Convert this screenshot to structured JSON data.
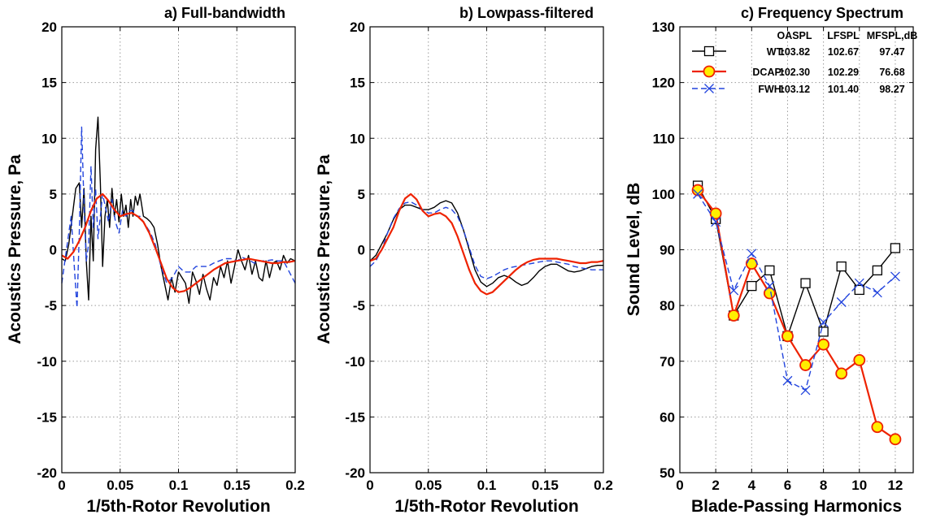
{
  "chart_data": [
    {
      "type": "line",
      "title": "a) Full-bandwidth",
      "xlabel": "1/5th-Rotor Revolution",
      "ylabel": "Acoustics Pressure, Pa",
      "xlim": [
        0,
        0.2
      ],
      "ylim": [
        -20,
        20
      ],
      "xticks": [
        0,
        0.05,
        0.1,
        0.15,
        0.2
      ],
      "xtick_labels": [
        "0",
        "0.05",
        "0.1",
        "0.15",
        "0.2"
      ],
      "yticks": [
        -20,
        -15,
        -10,
        -5,
        0,
        5,
        10,
        15,
        20
      ],
      "ytick_labels": [
        "-20",
        "-15",
        "-10",
        "-5",
        "0",
        "5",
        "10",
        "15",
        "20"
      ],
      "grid": true,
      "series": [
        {
          "color": "#000000",
          "style": "solid",
          "x": [
            0,
            0.003,
            0.006,
            0.009,
            0.012,
            0.015,
            0.017,
            0.019,
            0.021,
            0.023,
            0.025,
            0.027,
            0.029,
            0.031,
            0.033,
            0.035,
            0.037,
            0.039,
            0.041,
            0.043,
            0.045,
            0.047,
            0.049,
            0.051,
            0.053,
            0.055,
            0.057,
            0.059,
            0.061,
            0.063,
            0.065,
            0.067,
            0.07,
            0.073,
            0.076,
            0.079,
            0.082,
            0.085,
            0.088,
            0.091,
            0.094,
            0.097,
            0.1,
            0.103,
            0.106,
            0.109,
            0.112,
            0.115,
            0.118,
            0.121,
            0.124,
            0.127,
            0.13,
            0.133,
            0.136,
            0.139,
            0.142,
            0.145,
            0.148,
            0.151,
            0.154,
            0.157,
            0.16,
            0.163,
            0.166,
            0.169,
            0.172,
            0.175,
            0.178,
            0.181,
            0.184,
            0.187,
            0.19,
            0.193,
            0.196,
            0.2
          ],
          "y": [
            -0.8,
            -1,
            0.5,
            3,
            5.5,
            6,
            2,
            5.5,
            -1,
            -4.5,
            3,
            -1,
            9,
            11.9,
            6,
            -1.5,
            3,
            4.5,
            2,
            5.5,
            3,
            4.5,
            2.5,
            5,
            3,
            4,
            2,
            4.5,
            3,
            4.8,
            4,
            5,
            3,
            2.8,
            2.5,
            2,
            0.5,
            -1.5,
            -3,
            -4.5,
            -2.5,
            -3.8,
            -2,
            -2.5,
            -3,
            -4.8,
            -2,
            -2.8,
            -4,
            -2.2,
            -3.5,
            -4.5,
            -2.5,
            -3.2,
            -1.5,
            -2.5,
            -1,
            -3,
            -1.5,
            0,
            -1,
            -1.8,
            -0.5,
            -2.2,
            -1,
            -2.5,
            -2.8,
            -1,
            -2.5,
            -1.2,
            -1,
            -1.8,
            -0.5,
            -1.2,
            -0.8,
            -1
          ]
        },
        {
          "color": "#2244dd",
          "style": "dashed",
          "x": [
            0,
            0.004,
            0.008,
            0.011,
            0.013,
            0.015,
            0.017,
            0.019,
            0.021,
            0.023,
            0.025,
            0.027,
            0.029,
            0.031,
            0.033,
            0.035,
            0.037,
            0.04,
            0.043,
            0.046,
            0.049,
            0.052,
            0.055,
            0.058,
            0.061,
            0.064,
            0.067,
            0.07,
            0.073,
            0.076,
            0.08,
            0.085,
            0.09,
            0.095,
            0.1,
            0.105,
            0.11,
            0.115,
            0.12,
            0.125,
            0.13,
            0.135,
            0.14,
            0.145,
            0.15,
            0.155,
            0.16,
            0.165,
            0.17,
            0.175,
            0.18,
            0.185,
            0.19,
            0.195,
            0.2
          ],
          "y": [
            -3,
            0,
            3,
            -2,
            -5.2,
            1.5,
            11,
            4,
            -1,
            0.5,
            7.5,
            2,
            5.5,
            1,
            3,
            5,
            4,
            2.5,
            4.5,
            2.5,
            1.5,
            3.5,
            3,
            3.5,
            3.5,
            3,
            3,
            2.5,
            2,
            1.5,
            0.5,
            -1.5,
            -3,
            -2.5,
            -1.5,
            -2,
            -2,
            -1.5,
            -1.5,
            -1.5,
            -1.2,
            -1,
            -0.8,
            -0.8,
            -1,
            -0.7,
            -0.9,
            -1.2,
            -1,
            -1,
            -0.9,
            -1,
            -1,
            -2,
            -3
          ]
        },
        {
          "color": "#ee2200",
          "style": "solid",
          "x": [
            0,
            0.005,
            0.01,
            0.015,
            0.02,
            0.025,
            0.03,
            0.035,
            0.04,
            0.045,
            0.05,
            0.055,
            0.06,
            0.065,
            0.07,
            0.075,
            0.08,
            0.085,
            0.09,
            0.095,
            0.1,
            0.105,
            0.11,
            0.115,
            0.12,
            0.125,
            0.13,
            0.135,
            0.14,
            0.145,
            0.15,
            0.155,
            0.16,
            0.165,
            0.17,
            0.175,
            0.18,
            0.185,
            0.19,
            0.195,
            0.2
          ],
          "y": [
            -0.5,
            -0.8,
            -0.2,
            0.8,
            2,
            3.5,
            4.6,
            5,
            4.4,
            3.6,
            3,
            3.2,
            3.3,
            3,
            2.5,
            1.5,
            0.2,
            -1.2,
            -2.6,
            -3.4,
            -3.8,
            -3.7,
            -3.4,
            -3,
            -2.6,
            -2.2,
            -1.8,
            -1.5,
            -1.2,
            -1.1,
            -1,
            -0.9,
            -0.8,
            -0.9,
            -1,
            -1.1,
            -1.2,
            -1.2,
            -1.1,
            -1.1,
            -1
          ]
        }
      ]
    },
    {
      "type": "line",
      "title": "b) Lowpass-filtered",
      "xlabel": "1/5th-Rotor Revolution",
      "ylabel": "Acoustics Pressure, Pa",
      "xlim": [
        0,
        0.2
      ],
      "ylim": [
        -20,
        20
      ],
      "xticks": [
        0,
        0.05,
        0.1,
        0.15,
        0.2
      ],
      "xtick_labels": [
        "0",
        "0.05",
        "0.1",
        "0.15",
        "0.2"
      ],
      "yticks": [
        -20,
        -15,
        -10,
        -5,
        0,
        5,
        10,
        15,
        20
      ],
      "ytick_labels": [
        "-20",
        "-15",
        "-10",
        "-5",
        "0",
        "5",
        "10",
        "15",
        "20"
      ],
      "grid": true,
      "series": [
        {
          "color": "#000000",
          "style": "solid",
          "x": [
            0,
            0.005,
            0.01,
            0.015,
            0.02,
            0.025,
            0.03,
            0.035,
            0.04,
            0.045,
            0.05,
            0.055,
            0.06,
            0.065,
            0.07,
            0.075,
            0.08,
            0.085,
            0.09,
            0.095,
            0.1,
            0.105,
            0.11,
            0.115,
            0.12,
            0.125,
            0.13,
            0.135,
            0.14,
            0.145,
            0.15,
            0.155,
            0.16,
            0.165,
            0.17,
            0.175,
            0.18,
            0.185,
            0.19,
            0.195,
            0.2
          ],
          "y": [
            -1,
            -0.5,
            0.5,
            1.5,
            2.7,
            3.6,
            4,
            4,
            3.8,
            3.6,
            3.6,
            3.8,
            4.2,
            4.4,
            4.2,
            3.3,
            1.8,
            0,
            -1.8,
            -2.9,
            -3.3,
            -3,
            -2.5,
            -2.3,
            -2.5,
            -2.9,
            -3.2,
            -3,
            -2.5,
            -1.9,
            -1.5,
            -1.3,
            -1.3,
            -1.6,
            -1.9,
            -2,
            -1.9,
            -1.7,
            -1.5,
            -1.4,
            -1.4
          ]
        },
        {
          "color": "#2244dd",
          "style": "dashed",
          "x": [
            0,
            0.005,
            0.01,
            0.015,
            0.02,
            0.025,
            0.03,
            0.035,
            0.04,
            0.045,
            0.05,
            0.055,
            0.06,
            0.065,
            0.07,
            0.075,
            0.08,
            0.085,
            0.09,
            0.095,
            0.1,
            0.105,
            0.11,
            0.115,
            0.12,
            0.125,
            0.13,
            0.135,
            0.14,
            0.145,
            0.15,
            0.155,
            0.16,
            0.165,
            0.17,
            0.175,
            0.18,
            0.185,
            0.19,
            0.195,
            0.2
          ],
          "y": [
            -1.5,
            -1,
            0,
            1.5,
            2.8,
            3.7,
            4.2,
            4.3,
            4,
            3.6,
            3.3,
            3.3,
            3.6,
            3.8,
            3.6,
            3,
            1.8,
            0.2,
            -1.4,
            -2.4,
            -2.6,
            -2.4,
            -2.1,
            -1.8,
            -1.6,
            -1.5,
            -1.4,
            -1.3,
            -1.2,
            -1.1,
            -1,
            -1,
            -1.1,
            -1.2,
            -1.3,
            -1.5,
            -1.6,
            -1.7,
            -1.8,
            -1.8,
            -1.8
          ]
        },
        {
          "color": "#ee2200",
          "style": "solid",
          "x": [
            0,
            0.005,
            0.01,
            0.015,
            0.02,
            0.025,
            0.03,
            0.035,
            0.04,
            0.045,
            0.05,
            0.055,
            0.06,
            0.065,
            0.07,
            0.075,
            0.08,
            0.085,
            0.09,
            0.095,
            0.1,
            0.105,
            0.11,
            0.115,
            0.12,
            0.125,
            0.13,
            0.135,
            0.14,
            0.145,
            0.15,
            0.155,
            0.16,
            0.165,
            0.17,
            0.175,
            0.18,
            0.185,
            0.19,
            0.195,
            0.2
          ],
          "y": [
            -1,
            -0.8,
            0,
            1,
            2,
            3.5,
            4.6,
            5,
            4.5,
            3.5,
            3,
            3.2,
            3.3,
            3,
            2.4,
            1.2,
            -0.3,
            -1.8,
            -3,
            -3.7,
            -4,
            -3.8,
            -3.3,
            -2.8,
            -2.3,
            -1.8,
            -1.4,
            -1.1,
            -0.9,
            -0.8,
            -0.8,
            -0.8,
            -0.8,
            -0.9,
            -1,
            -1.1,
            -1.2,
            -1.2,
            -1.1,
            -1.1,
            -1
          ]
        }
      ]
    },
    {
      "type": "line",
      "title": "c) Frequency Spectrum",
      "xlabel": "Blade-Passing Harmonics",
      "ylabel": "Sound Level, dB",
      "xlim": [
        0,
        13
      ],
      "ylim": [
        50,
        130
      ],
      "xticks": [
        0,
        2,
        4,
        6,
        8,
        10,
        12
      ],
      "xtick_labels": [
        "0",
        "2",
        "4",
        "6",
        "8",
        "10",
        "12"
      ],
      "yticks": [
        50,
        60,
        70,
        80,
        90,
        100,
        110,
        120,
        130
      ],
      "ytick_labels": [
        "50",
        "60",
        "70",
        "80",
        "90",
        "100",
        "110",
        "120",
        "130"
      ],
      "grid": true,
      "legend_position": "top-left",
      "legend_table": {
        "columns": [
          "OASPL",
          "LFSPL",
          "MFSPL,dB"
        ],
        "rows": [
          {
            "label": "WT:",
            "values": [
              "103.82",
              "102.67",
              "97.47"
            ]
          },
          {
            "label": "DCAP:",
            "values": [
              "102.30",
              "102.29",
              "76.68"
            ]
          },
          {
            "label": "FWH:",
            "values": [
              "103.12",
              "101.40",
              "98.27"
            ]
          }
        ]
      },
      "series": [
        {
          "color": "#000000",
          "style": "solid",
          "marker": "square",
          "x": [
            1,
            2,
            3,
            4,
            5,
            6,
            7,
            8,
            9,
            10,
            11,
            12
          ],
          "y": [
            101.5,
            95.5,
            78.2,
            83.5,
            86.3,
            74.5,
            84,
            75.3,
            87,
            82.8,
            86.3,
            90.3
          ]
        },
        {
          "color": "#ee2200",
          "style": "solid",
          "marker": "circle",
          "marker_fill": "#ffee00",
          "x": [
            1,
            2,
            3,
            4,
            5,
            6,
            7,
            8,
            9,
            10,
            11,
            12
          ],
          "y": [
            100.7,
            96.5,
            78.2,
            87.5,
            82.2,
            74.5,
            69.3,
            73,
            67.8,
            70.2,
            58.2,
            56
          ]
        },
        {
          "color": "#2244dd",
          "style": "dashed",
          "marker": "x",
          "x": [
            1,
            2,
            3,
            4,
            5,
            6,
            7,
            8,
            9,
            10,
            11,
            12
          ],
          "y": [
            100,
            95,
            82.7,
            89.3,
            83.5,
            66.5,
            64.8,
            77,
            80.6,
            84,
            82.3,
            85.2
          ]
        }
      ]
    }
  ]
}
